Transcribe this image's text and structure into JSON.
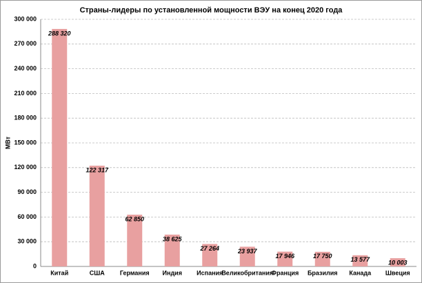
{
  "chart_data": {
    "type": "bar",
    "title": "Страны-лидеры по установленной мощности ВЭУ на конец 2020 года",
    "y_label": "МВт",
    "categories": [
      "Китай",
      "США",
      "Германия",
      "Индия",
      "Испания",
      "Великобритания",
      "Франция",
      "Бразилия",
      "Канада",
      "Швеция"
    ],
    "values": [
      288320,
      122317,
      62850,
      38625,
      27264,
      23937,
      17946,
      17750,
      13577,
      10003
    ],
    "value_labels": [
      "288 320",
      "122 317",
      "62 850",
      "38 625",
      "27 264",
      "23 937",
      "17 946",
      "17 750",
      "13 577",
      "10 003"
    ],
    "color": "#e8a0a0",
    "ylim": [
      0,
      300000
    ],
    "yticks": [
      0,
      {
        "value": 30000,
        "label": "30 000"
      },
      {
        "value": 60000,
        "label": "60 000"
      },
      {
        "value": 90000,
        "label": "90 000"
      },
      {
        "value": 120000,
        "label": "120 000"
      },
      {
        "value": 150000,
        "label": "150 000"
      },
      {
        "value": 180000,
        "label": "180 000"
      },
      {
        "value": 210000,
        "label": "210 000"
      },
      {
        "value": 240000,
        "label": "240 000"
      },
      {
        "value": 270000,
        "label": "270 000"
      },
      {
        "value": 300000,
        "label": "300 000"
      }
    ],
    "grid": true
  }
}
